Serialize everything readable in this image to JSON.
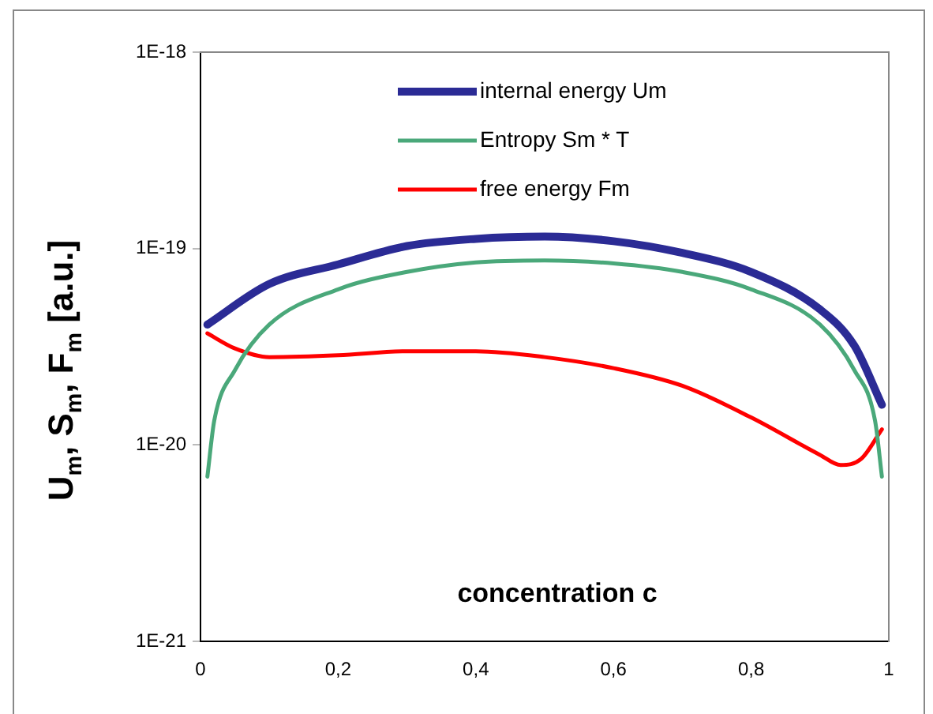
{
  "chart_data": {
    "type": "line",
    "xlabel": "concentration c",
    "ylabel": "U$_{m}$, S$_{m}$, F$_{m}$ [a.u.]",
    "log": "y",
    "xlim": [
      0,
      1
    ],
    "ylim": [
      1e-21,
      1e-18
    ],
    "xticks": [
      0,
      {
        "value": 0.2,
        "label": "0,2"
      },
      {
        "value": 0.4,
        "label": "0,4"
      },
      {
        "value": 0.6,
        "label": "0,6"
      },
      {
        "value": 0.8,
        "label": "0,8"
      },
      1
    ],
    "yticks": [
      {
        "value": 1e-21,
        "label": "1E-21"
      },
      {
        "value": 1e-20,
        "label": "1E-20"
      },
      {
        "value": 1e-19,
        "label": "1E-19"
      },
      {
        "value": 1e-18,
        "label": "1E-18"
      }
    ],
    "grid": false,
    "legend": "top",
    "marker": "none",
    "line_style": "solid",
    "series": [
      {
        "name": "internal energy Um",
        "color": "#2b2b95",
        "x": [
          0.01,
          0.1,
          0.2,
          0.3,
          0.4,
          0.5,
          0.6,
          0.7,
          0.8,
          0.9,
          0.95,
          0.99
        ],
        "values": [
          4.1e-20,
          6.6e-20,
          8.3e-20,
          1.03e-19,
          1.12e-19,
          1.15e-19,
          1.09e-19,
          9.5e-20,
          7.6e-20,
          4.9e-20,
          3.2e-20,
          1.6e-20
        ]
      },
      {
        "name": "Entropy Sm * T",
        "color": "#4aa87a",
        "x": [
          0.01,
          0.02,
          0.05,
          0.1,
          0.2,
          0.3,
          0.4,
          0.5,
          0.6,
          0.7,
          0.8,
          0.9,
          0.95,
          0.98,
          0.99
        ],
        "values": [
          6.9e-21,
          1.33e-20,
          2.4e-20,
          4.1e-20,
          6.2e-20,
          7.6e-20,
          8.5e-20,
          8.7e-20,
          8.4e-20,
          7.6e-20,
          6.2e-20,
          4.1e-20,
          2.4e-20,
          1.33e-20,
          6.9e-21
        ]
      },
      {
        "name": "free energy Fm",
        "color": "#ff0000",
        "x": [
          0.01,
          0.05,
          0.1,
          0.2,
          0.3,
          0.4,
          0.5,
          0.6,
          0.7,
          0.8,
          0.9,
          0.93,
          0.96,
          0.99
        ],
        "values": [
          3.7e-20,
          3.1e-20,
          2.8e-20,
          2.86e-20,
          3e-20,
          3e-20,
          2.8e-20,
          2.46e-20,
          2e-20,
          1.38e-20,
          8.9e-21,
          7.9e-21,
          8.5e-21,
          1.2e-20
        ]
      }
    ]
  }
}
